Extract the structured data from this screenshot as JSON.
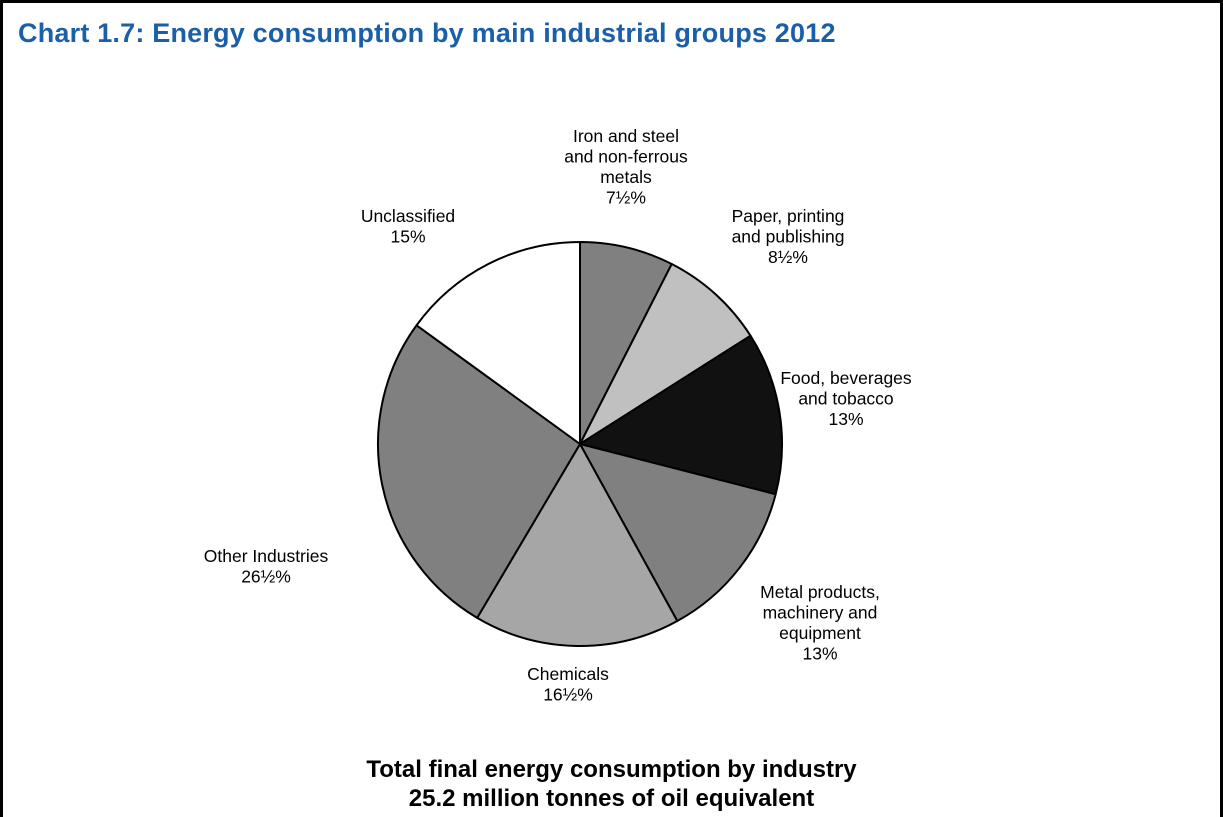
{
  "title": "Chart 1.7:  Energy consumption by main industrial groups 2012",
  "footer": {
    "line1": "Total final energy consumption by industry",
    "line2": "25.2 million tonnes of oil equivalent"
  },
  "chart_data": {
    "type": "pie",
    "title": "Chart 1.7:  Energy consumption by main industrial groups 2012",
    "start": "12 o'clock",
    "direction": "clockwise",
    "slices": [
      {
        "lines": [
          "Iron and steel",
          "and non-ferrous",
          "metals",
          "7½%"
        ],
        "value": 7.5,
        "color": "#808080"
      },
      {
        "lines": [
          "Paper, printing",
          "and publishing",
          "8½%"
        ],
        "value": 8.5,
        "color": "#c0c0c0"
      },
      {
        "lines": [
          "Food, beverages",
          "and tobacco",
          "13%"
        ],
        "value": 13,
        "color": "#111111"
      },
      {
        "lines": [
          "Metal products,",
          "machinery and",
          "equipment",
          "13%"
        ],
        "value": 13,
        "color": "#808080"
      },
      {
        "lines": [
          "Chemicals",
          "16½%"
        ],
        "value": 16.5,
        "color": "#a6a6a6"
      },
      {
        "lines": [
          "Other Industries",
          "26½%"
        ],
        "value": 26.5,
        "color": "#808080"
      },
      {
        "lines": [
          "Unclassified",
          "15%"
        ],
        "value": 15,
        "color": "#ffffff"
      }
    ]
  }
}
